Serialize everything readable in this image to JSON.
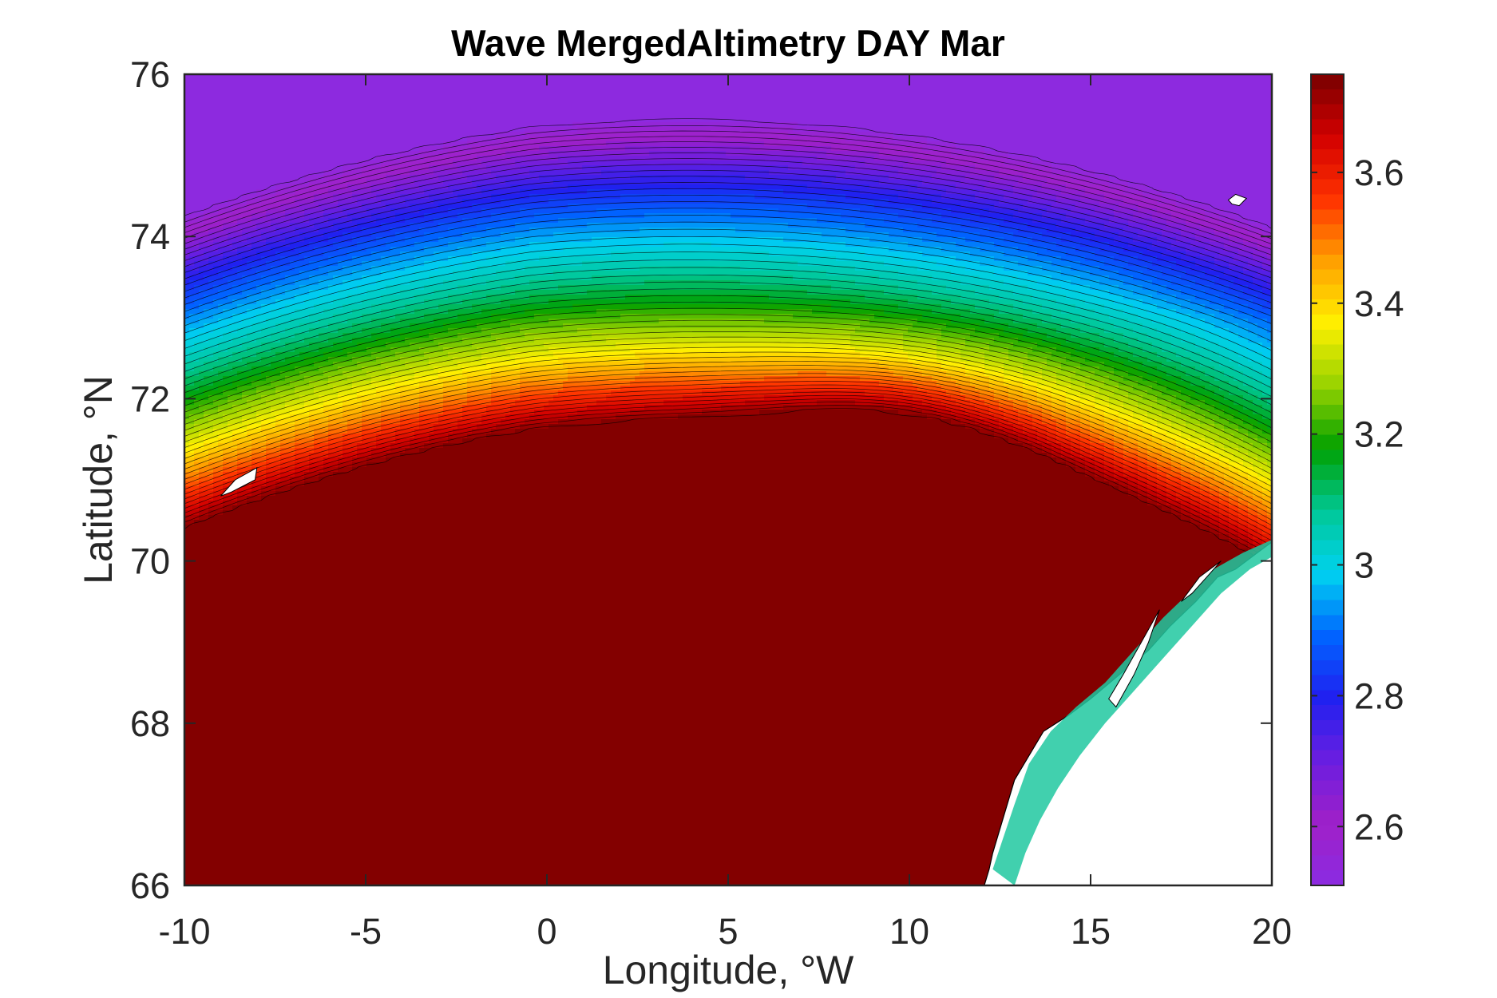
{
  "chart_data": {
    "type": "heatmap",
    "subtype": "filled-contour-map",
    "title": "Wave MergedAltimetry DAY Mar",
    "xlabel": "Longitude, °W",
    "ylabel": "Latitude, °N",
    "xlim": [
      -10,
      20
    ],
    "ylim": [
      66,
      76
    ],
    "xticks": [
      -10,
      -5,
      0,
      5,
      10,
      15,
      20
    ],
    "yticks": [
      66,
      68,
      70,
      72,
      74,
      76
    ],
    "xtick_labels": [
      "-10",
      "-5",
      "0",
      "5",
      "10",
      "15",
      "20"
    ],
    "ytick_labels": [
      "66",
      "68",
      "70",
      "72",
      "74",
      "76"
    ],
    "colorbar": {
      "ticks": [
        2.6,
        2.8,
        3.0,
        3.2,
        3.4,
        3.6
      ],
      "tick_labels": [
        "2.6",
        "2.8",
        "3",
        "3.2",
        "3.4",
        "3.6"
      ],
      "range": [
        2.51,
        3.75
      ],
      "position": "right",
      "colormap": [
        "#8a2be2",
        "#a020c8",
        "#6a1ee0",
        "#2020f0",
        "#0064ff",
        "#00d2f0",
        "#00c896",
        "#00a000",
        "#96d200",
        "#fff000",
        "#ffa000",
        "#ff3200",
        "#d20000",
        "#780000"
      ]
    },
    "contour_levels": 54,
    "coastline_color": "#000000",
    "land_color": "#ffffff",
    "fields": {
      "maximum": {
        "lon": 4.5,
        "lat": 69.0,
        "value": 3.74
      },
      "minimum": {
        "lon": -9.5,
        "lat": 75.8,
        "value": 2.52
      }
    }
  }
}
